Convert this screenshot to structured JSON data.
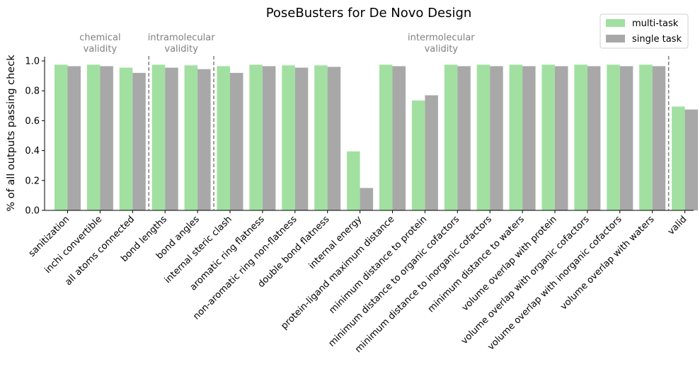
{
  "chart_data": {
    "type": "bar",
    "title": "PoseBusters for De Novo Design",
    "xlabel": "",
    "ylabel": "% of all outputs passing check",
    "ylim": [
      0,
      1.02
    ],
    "yticks": [
      "0.0",
      "0.2",
      "0.4",
      "0.6",
      "0.8",
      "1.0"
    ],
    "ytick_values": [
      0,
      0.2,
      0.4,
      0.6,
      0.8,
      1.0
    ],
    "legend_position": "top-right",
    "categories": [
      "sanitization",
      "inchi convertible",
      "all atoms connected",
      "bond lengths",
      "bond angles",
      "internal steric clash",
      "aromatic ring flatness",
      "non-aromatic ring non-flatness",
      "double bond flatness",
      "internal energy",
      "protein-ligand maximum distance",
      "minimum distance to protein",
      "minimum distance to organic cofactors",
      "minimum distance to inorganic cofactors",
      "minimum distance to waters",
      "volume overlap with protein",
      "volume overlap with organic cofactors",
      "volume overlap with inorganic cofactors",
      "volume overlap with waters",
      "valid"
    ],
    "series": [
      {
        "name": "multi-task",
        "color": "#a1e0a1",
        "values": [
          0.975,
          0.975,
          0.955,
          0.975,
          0.97,
          0.965,
          0.975,
          0.97,
          0.97,
          0.395,
          0.975,
          0.735,
          0.975,
          0.975,
          0.975,
          0.975,
          0.975,
          0.975,
          0.975,
          0.695
        ]
      },
      {
        "name": "single task",
        "color": "#a8a8a8",
        "values": [
          0.965,
          0.965,
          0.92,
          0.955,
          0.945,
          0.92,
          0.965,
          0.955,
          0.96,
          0.15,
          0.965,
          0.77,
          0.965,
          0.965,
          0.965,
          0.965,
          0.965,
          0.965,
          0.965,
          0.675
        ]
      }
    ],
    "group_labels": [
      {
        "line1": "chemical",
        "line2": "validity",
        "start_index": 0,
        "end_index": 2
      },
      {
        "line1": "intramolecular",
        "line2": "validity",
        "start_index": 3,
        "end_index": 4
      },
      {
        "line1": "intermolecular",
        "line2": "validity",
        "start_index": 5,
        "end_index": 18
      }
    ],
    "separators_after_index": [
      2,
      4,
      18
    ]
  }
}
